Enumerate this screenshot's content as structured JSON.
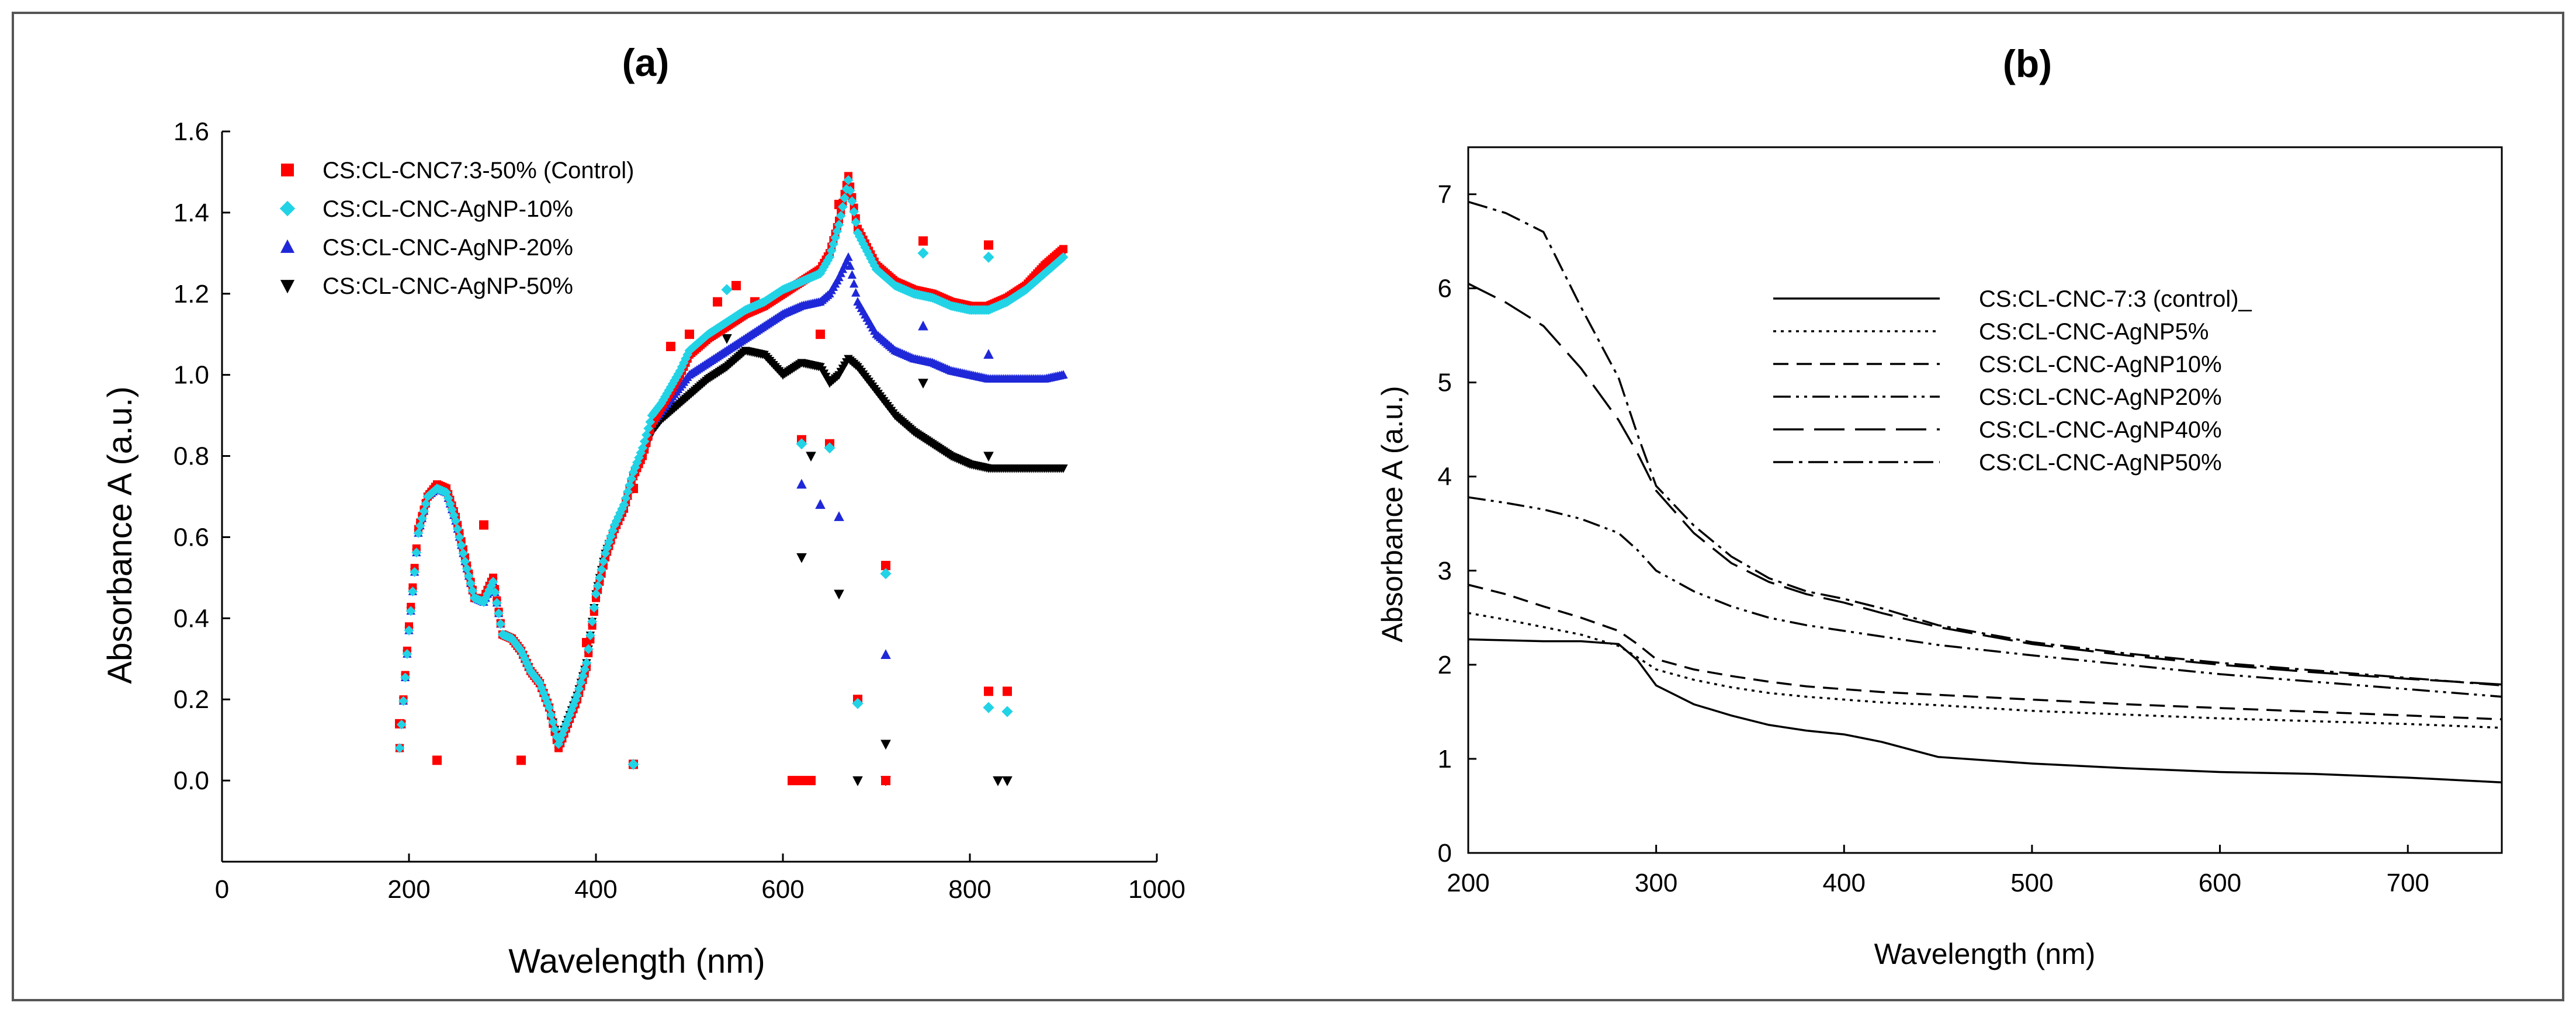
{
  "colors": {
    "background": "#ffffff",
    "frame": "#555555",
    "axis": "#000000",
    "control": "#ff0000",
    "agnp10": "#22d3e6",
    "agnp20": "#1f28d8",
    "agnp50": "#000000"
  },
  "chart_data": [
    {
      "id": "a",
      "type": "scatter",
      "title": "(a)",
      "xlabel": "Wavelength (nm)",
      "ylabel": "Absorbance A (a.u.)",
      "xlim": [
        0,
        1000
      ],
      "ylim": [
        -0.2,
        1.6
      ],
      "xticks": [
        0,
        200,
        400,
        600,
        800,
        1000
      ],
      "yticks": [
        0.0,
        0.2,
        0.4,
        0.6,
        0.8,
        1.0,
        1.2,
        1.4,
        1.6
      ],
      "ytick_labels": [
        "0.0",
        "0.2",
        "0.4",
        "0.6",
        "0.8",
        "1.0",
        "1.2",
        "1.4",
        "1.6"
      ],
      "legend_position": "top-left",
      "series": [
        {
          "name": "CS:CL-CNC7:3-50% (Control)",
          "marker": "square",
          "color": "#ff0000",
          "x": [
            190,
            200,
            210,
            220,
            230,
            240,
            250,
            260,
            270,
            280,
            290,
            300,
            310,
            320,
            330,
            340,
            350,
            360,
            370,
            380,
            390,
            400,
            410,
            420,
            430,
            440,
            450,
            460,
            470,
            480,
            490,
            500,
            520,
            540,
            560,
            580,
            600,
            620,
            640,
            650,
            660,
            670,
            680,
            700,
            720,
            740,
            760,
            780,
            800,
            820,
            840,
            860,
            880,
            900
          ],
          "y": [
            0.08,
            0.38,
            0.62,
            0.7,
            0.73,
            0.72,
            0.65,
            0.55,
            0.45,
            0.45,
            0.5,
            0.36,
            0.35,
            0.32,
            0.27,
            0.24,
            0.18,
            0.08,
            0.14,
            0.2,
            0.28,
            0.45,
            0.55,
            0.62,
            0.67,
            0.75,
            0.8,
            0.88,
            0.92,
            0.96,
            1.0,
            1.05,
            1.09,
            1.12,
            1.15,
            1.17,
            1.2,
            1.23,
            1.26,
            1.3,
            1.38,
            1.49,
            1.36,
            1.27,
            1.23,
            1.21,
            1.2,
            1.18,
            1.17,
            1.17,
            1.19,
            1.22,
            1.27,
            1.31
          ],
          "extra_points": [
            [
              190,
              0.14
            ],
            [
              230,
              0.05
            ],
            [
              280,
              0.63
            ],
            [
              320,
              0.05
            ],
            [
              390,
              0.34
            ],
            [
              440,
              0.72
            ],
            [
              440,
              0.04
            ],
            [
              480,
              1.07
            ],
            [
              500,
              1.1
            ],
            [
              530,
              1.18
            ],
            [
              550,
              1.22
            ],
            [
              570,
              1.18
            ],
            [
              620,
              0.84
            ],
            [
              640,
              1.1
            ],
            [
              650,
              0.83
            ],
            [
              660,
              1.42
            ],
            [
              680,
              0.2
            ],
            [
              710,
              0.53
            ],
            [
              750,
              1.33
            ],
            [
              820,
              1.32
            ],
            [
              820,
              0.22
            ],
            [
              840,
              0.22
            ],
            [
              610,
              0.0
            ],
            [
              620,
              0.0
            ],
            [
              630,
              0.0
            ],
            [
              710,
              0.0
            ]
          ]
        },
        {
          "name": "CS:CL-CNC-AgNP-10%",
          "marker": "diamond",
          "color": "#22d3e6",
          "x": [
            190,
            200,
            210,
            220,
            230,
            240,
            250,
            260,
            270,
            280,
            290,
            300,
            310,
            320,
            330,
            340,
            350,
            360,
            370,
            380,
            390,
            400,
            410,
            420,
            430,
            440,
            450,
            460,
            470,
            480,
            490,
            500,
            520,
            540,
            560,
            580,
            600,
            620,
            640,
            650,
            660,
            670,
            680,
            700,
            720,
            740,
            760,
            780,
            800,
            820,
            840,
            860,
            880,
            900
          ],
          "y": [
            0.08,
            0.37,
            0.61,
            0.7,
            0.72,
            0.71,
            0.64,
            0.54,
            0.45,
            0.44,
            0.49,
            0.36,
            0.35,
            0.32,
            0.27,
            0.24,
            0.18,
            0.09,
            0.15,
            0.21,
            0.29,
            0.46,
            0.56,
            0.63,
            0.68,
            0.76,
            0.82,
            0.9,
            0.93,
            0.97,
            1.01,
            1.06,
            1.1,
            1.13,
            1.16,
            1.18,
            1.21,
            1.23,
            1.25,
            1.29,
            1.37,
            1.48,
            1.35,
            1.26,
            1.22,
            1.2,
            1.19,
            1.17,
            1.16,
            1.16,
            1.18,
            1.21,
            1.25,
            1.29
          ],
          "extra_points": [
            [
              540,
              1.21
            ],
            [
              620,
              0.83
            ],
            [
              650,
              0.82
            ],
            [
              680,
              0.19
            ],
            [
              710,
              0.51
            ],
            [
              750,
              1.3
            ],
            [
              820,
              1.29
            ],
            [
              820,
              0.18
            ],
            [
              840,
              0.17
            ],
            [
              440,
              0.04
            ]
          ]
        },
        {
          "name": "CS:CL-CNC-AgNP-20%",
          "marker": "triangle",
          "color": "#1f28d8",
          "x": [
            190,
            200,
            210,
            220,
            230,
            240,
            250,
            260,
            270,
            280,
            290,
            300,
            310,
            320,
            330,
            340,
            350,
            360,
            370,
            380,
            390,
            400,
            410,
            420,
            430,
            440,
            450,
            460,
            470,
            480,
            490,
            500,
            520,
            540,
            560,
            580,
            600,
            620,
            640,
            650,
            660,
            670,
            680,
            700,
            720,
            740,
            760,
            780,
            800,
            820,
            840,
            860,
            880,
            900
          ],
          "y": [
            0.08,
            0.37,
            0.61,
            0.7,
            0.72,
            0.71,
            0.64,
            0.54,
            0.45,
            0.44,
            0.49,
            0.36,
            0.35,
            0.32,
            0.27,
            0.24,
            0.18,
            0.09,
            0.15,
            0.21,
            0.29,
            0.46,
            0.56,
            0.62,
            0.67,
            0.75,
            0.81,
            0.88,
            0.91,
            0.94,
            0.97,
            1.0,
            1.03,
            1.06,
            1.09,
            1.12,
            1.15,
            1.17,
            1.18,
            1.2,
            1.24,
            1.29,
            1.18,
            1.1,
            1.06,
            1.04,
            1.03,
            1.01,
            1.0,
            0.99,
            0.99,
            0.99,
            0.99,
            1.0
          ],
          "extra_points": [
            [
              620,
              0.73
            ],
            [
              640,
              0.68
            ],
            [
              660,
              0.65
            ],
            [
              710,
              0.31
            ],
            [
              750,
              1.12
            ],
            [
              820,
              1.05
            ]
          ]
        },
        {
          "name": "CS:CL-CNC-AgNP-50%",
          "marker": "triangle-down",
          "color": "#000000",
          "x": [
            190,
            200,
            210,
            220,
            230,
            240,
            250,
            260,
            270,
            280,
            290,
            300,
            310,
            320,
            330,
            340,
            350,
            360,
            370,
            380,
            390,
            400,
            410,
            420,
            430,
            440,
            450,
            460,
            470,
            480,
            490,
            500,
            520,
            540,
            560,
            580,
            600,
            620,
            640,
            650,
            660,
            670,
            680,
            700,
            720,
            740,
            760,
            780,
            800,
            820,
            840,
            860,
            880,
            900
          ],
          "y": [
            0.08,
            0.37,
            0.61,
            0.7,
            0.72,
            0.71,
            0.64,
            0.54,
            0.45,
            0.44,
            0.49,
            0.36,
            0.35,
            0.32,
            0.27,
            0.24,
            0.18,
            0.09,
            0.15,
            0.21,
            0.29,
            0.46,
            0.56,
            0.62,
            0.67,
            0.75,
            0.8,
            0.86,
            0.89,
            0.91,
            0.93,
            0.95,
            0.99,
            1.02,
            1.06,
            1.05,
            1.0,
            1.03,
            1.02,
            0.98,
            1.0,
            1.04,
            1.02,
            0.96,
            0.9,
            0.86,
            0.83,
            0.8,
            0.78,
            0.77,
            0.77,
            0.77,
            0.77,
            0.77
          ],
          "extra_points": [
            [
              540,
              1.09
            ],
            [
              620,
              0.55
            ],
            [
              630,
              0.8
            ],
            [
              660,
              0.46
            ],
            [
              710,
              0.09
            ],
            [
              750,
              0.98
            ],
            [
              820,
              0.8
            ],
            [
              680,
              0.0
            ],
            [
              710,
              0.0
            ],
            [
              830,
              0.0
            ],
            [
              840,
              0.0
            ]
          ]
        }
      ]
    },
    {
      "id": "b",
      "type": "line",
      "title": "(b)",
      "xlabel": "Wavelength (nm)",
      "ylabel": "Absorbance A (a.u.)",
      "xlim": [
        200,
        750
      ],
      "ylim": [
        0,
        7.5
      ],
      "xticks": [
        200,
        300,
        400,
        500,
        600,
        700
      ],
      "yticks": [
        0,
        1,
        2,
        3,
        4,
        5,
        6,
        7
      ],
      "legend_position": "top-right",
      "x": [
        200,
        220,
        240,
        260,
        280,
        290,
        300,
        320,
        340,
        360,
        380,
        400,
        420,
        450,
        500,
        550,
        600,
        650,
        700,
        750
      ],
      "series": [
        {
          "name": "CS:CL-CNC-7:3 (control)_",
          "dash": "solid",
          "values": [
            2.27,
            2.26,
            2.25,
            2.25,
            2.22,
            2.05,
            1.78,
            1.58,
            1.46,
            1.36,
            1.3,
            1.26,
            1.18,
            1.02,
            0.95,
            0.9,
            0.86,
            0.84,
            0.8,
            0.75
          ]
        },
        {
          "name": "CS:CL-CNC-AgNP5%",
          "dash": "dotted",
          "values": [
            2.55,
            2.48,
            2.4,
            2.32,
            2.2,
            2.08,
            1.95,
            1.84,
            1.76,
            1.7,
            1.66,
            1.63,
            1.6,
            1.57,
            1.51,
            1.47,
            1.43,
            1.4,
            1.37,
            1.33
          ]
        },
        {
          "name": "CS:CL-CNC-AgNP10%",
          "dash": "dashed",
          "values": [
            2.85,
            2.75,
            2.62,
            2.5,
            2.36,
            2.22,
            2.06,
            1.95,
            1.88,
            1.82,
            1.77,
            1.74,
            1.71,
            1.68,
            1.63,
            1.58,
            1.54,
            1.5,
            1.46,
            1.42
          ]
        },
        {
          "name": "CS:CL-CNC-AgNP20%",
          "dash": "dash-dot-dot",
          "values": [
            3.78,
            3.72,
            3.65,
            3.55,
            3.4,
            3.22,
            3.0,
            2.78,
            2.62,
            2.5,
            2.42,
            2.36,
            2.3,
            2.21,
            2.1,
            2.0,
            1.9,
            1.82,
            1.74,
            1.66
          ]
        },
        {
          "name": "CS:CL-CNC-AgNP40%",
          "dash": "long-dash",
          "values": [
            6.05,
            5.85,
            5.6,
            5.15,
            4.6,
            4.25,
            3.85,
            3.4,
            3.08,
            2.88,
            2.75,
            2.66,
            2.55,
            2.4,
            2.22,
            2.1,
            2.0,
            1.92,
            1.85,
            1.79
          ]
        },
        {
          "name": "CS:CL-CNC-AgNP50%",
          "dash": "dash-dot",
          "values": [
            6.92,
            6.8,
            6.6,
            5.8,
            5.05,
            4.45,
            3.9,
            3.48,
            3.15,
            2.92,
            2.78,
            2.7,
            2.6,
            2.42,
            2.24,
            2.12,
            2.02,
            1.94,
            1.86,
            1.78
          ]
        }
      ]
    }
  ]
}
